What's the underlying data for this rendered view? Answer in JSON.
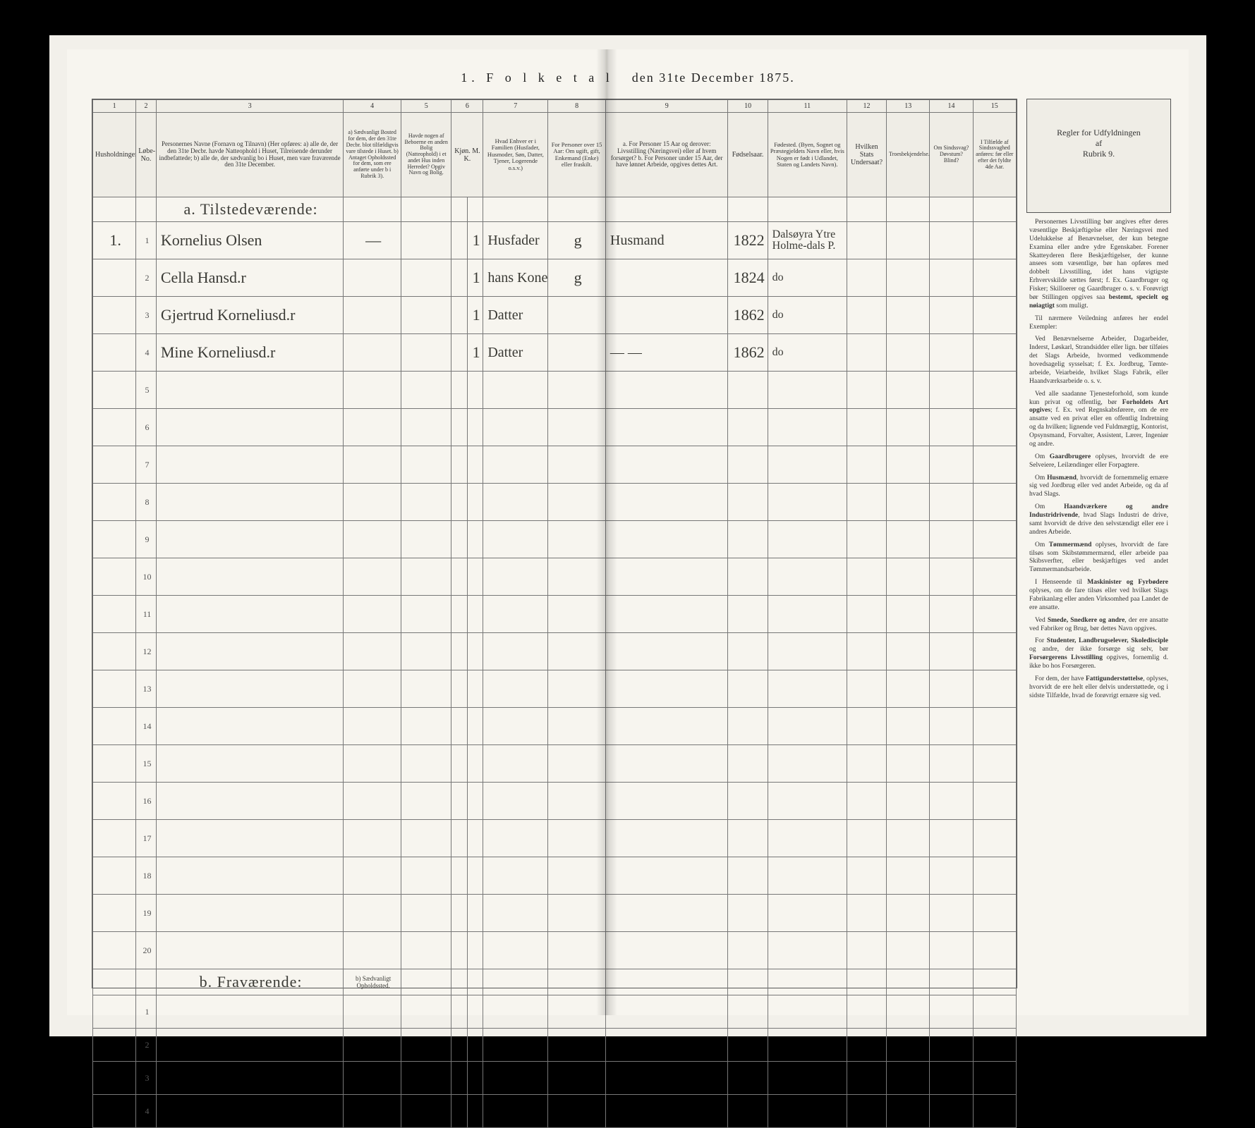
{
  "title_prefix": "1.  F o l k e t a l",
  "title_suffix": "den 31te December 1875.",
  "column_numbers": [
    "1",
    "2",
    "3",
    "4",
    "5",
    "6",
    "7",
    "8",
    "9",
    "10",
    "11",
    "12",
    "13",
    "14",
    "15"
  ],
  "headers": {
    "c1": "Husholdninger.",
    "c2": "Løbe-No.",
    "c3": "Personernes Navne (Fornavn og Tilnavn)\n(Her opføres:\na) alle de, der den 31te Decbr. havde Natteophold i Huset, Tilreisende derunder indbefattede;\nb) alle de, der sædvanlig bo i Huset, men vare fraværende den 31te December.",
    "c4": "a) Sædvanligt Bosted for dem, der den 31te Decbr. blot tilfældigvis vare tilstede i Huset. b) Antaget Opholdssted for dem, som ere anførte under b i Rubrik 3).",
    "c5": "Havde nogen af Beboerne en anden Bolig (Natteophold) i et andet Hus inden Herredet? Opgiv Navn og Bolig.",
    "c6": "Kjøn. M. K.",
    "c7": "Hvad Enhver er i Familien (Husfader, Husmoder, Søn, Datter, Tjener, Logerende o.s.v.)",
    "c8": "For Personer over 15 Aar: Om ugift, gift, Enkemand (Enke) eller fraskilt.",
    "c9": "a. For Personer 15 Aar og derover: Livsstilling (Næringsvei) eller af hvem forsørget?\nb. For Personer under 15 Aar, der have lønnet Arbeide, opgives dettes Art.",
    "c10": "Fødselsaar.",
    "c11": "Fødested. (Byen, Sognet og Præstegjeldets Navn eller, hvis Nogen er født i Udlandet, Staten og Landets Navn).",
    "c12": "Hvilken Stats Undersaat?",
    "c13": "Troesbekjendelse.",
    "c14": "Om Sindssvag? Døvstum? Blind?",
    "c15": "I Tilfælde af Sindssvaghed anføres: før eller efter det fyldte 4de Aar."
  },
  "section_a": "a. Tilstedeværende:",
  "section_b": "b. Fraværende:",
  "section_b_note": "b) Sædvanligt Opholdssted.",
  "rows": [
    {
      "n": "1",
      "name": "Kornelius Olsen",
      "c4": "—",
      "c6": "1",
      "rel": "Husfader",
      "c8": "g",
      "occ": "Husmand",
      "year": "1822",
      "place": "Dalsøyra Ytre Holme-dals P."
    },
    {
      "n": "2",
      "name": "Cella Hansd.r",
      "c4": "",
      "c6": "1",
      "rel": "hans Kone",
      "c8": "g",
      "occ": "",
      "year": "1824",
      "place": "do"
    },
    {
      "n": "3",
      "name": "Gjertrud Korneliusd.r",
      "c4": "",
      "c6": "1",
      "rel": "Datter",
      "c8": "",
      "occ": "",
      "year": "1862",
      "place": "do"
    },
    {
      "n": "4",
      "name": "Mine Korneliusd.r",
      "c4": "",
      "c6": "1",
      "rel": "Datter",
      "c8": "",
      "occ": "— —",
      "year": "1862",
      "place": "do"
    }
  ],
  "right": {
    "header": "Regler for Udfyldningen\naf\nRubrik 9.",
    "paras": [
      "Personernes Livsstilling bør angives efter deres væsentlige Beskjæftigelse eller Næringsvei med Udelukkelse af Benævnelser, der kun betegne Examina eller andre ydre Egenskaber. Forener Skatteyderen flere Beskjæftigelser, der kunne ansees som væsentlige, bør han opføres med dobbelt Livsstilling, idet hans vigtigste Erhvervskilde sættes først; f. Ex. Gaardbruger og Fisker; Skilloerer og Gaardbruger o. s. v. Forøvrigt bør Stillingen opgives saa <b>bestemt, specielt og nøiagtigt</b> som muligt.",
      "Til nærmere Veiledning anføres her endel Exempler:",
      "Ved Benævnelserne Arbeider, Dagarbeider, Inderst, Løskarl, Strandsidder eller lign. bør tilføies det Slags Arbeide, hvormed vedkommende hovedsagelig sysselsat; f. Ex. Jordbrug, Tømte-arbeide, Veiarbeide, hvilket Slags Fabrik, eller Haandværksarbeide o. s. v.",
      "Ved alle saadanne Tjenesteforhold, som kunde kun privat og offentlig, bør <b>Forholdets Art opgives</b>; f. Ex. ved Regnskabsførere, om de ere ansatte ved en privat eller en offentlig Indretning og da hvilken; lignende ved Fuldmægtig, Kontorist, Opsynsmand, Forvalter, Assistent, Lærer, Ingeniør og andre.",
      "Om <b>Gaardbrugere</b> oplyses, hvorvidt de ere Selveiere, Leilændinger eller Forpagtere.",
      "Om <b>Husmænd</b>, hvorvidt de fornemmelig ernære sig ved Jordbrug eller ved andet Arbeide, og da af hvad Slags.",
      "Om <b>Haandværkere og andre Industridrivende</b>, hvad Slags Industri de drive, samt hvorvidt de drive den selvstændigt eller ere i andres Arbeide.",
      "Om <b>Tømmermænd</b> oplyses, hvorvidt de fare tilsøs som Skibstømmermænd, eller arbeide paa Skibsverfter, eller beskjæftiges ved andet Tømmermandsarbeide.",
      "I Henseende til <b>Maskinister og Fyrbødere</b> oplyses, om de fare tilsøs eller ved hvilket Slags Fabrikanlæg eller anden Virksomhed paa Landet de ere ansatte.",
      "Ved <b>Smede, Snedkere og andre</b>, der ere ansatte ved Fabriker og Brug, bør dettes Navn opgives.",
      "For <b>Studenter, Landbrugselever, Skoledisciple</b> og andre, der ikke forsørge sig selv, bør <b>Forsørgerens Livsstilling</b> opgives, fornemlig d. ikke bo hos Forsørgeren.",
      "For dem, der have <b>Fattigunderstøttelse</b>, oplyses, hvorvidt de ere helt eller delvis understøttede, og i sidste Tilfælde, hvad de forøvrigt ernære sig ved."
    ]
  }
}
